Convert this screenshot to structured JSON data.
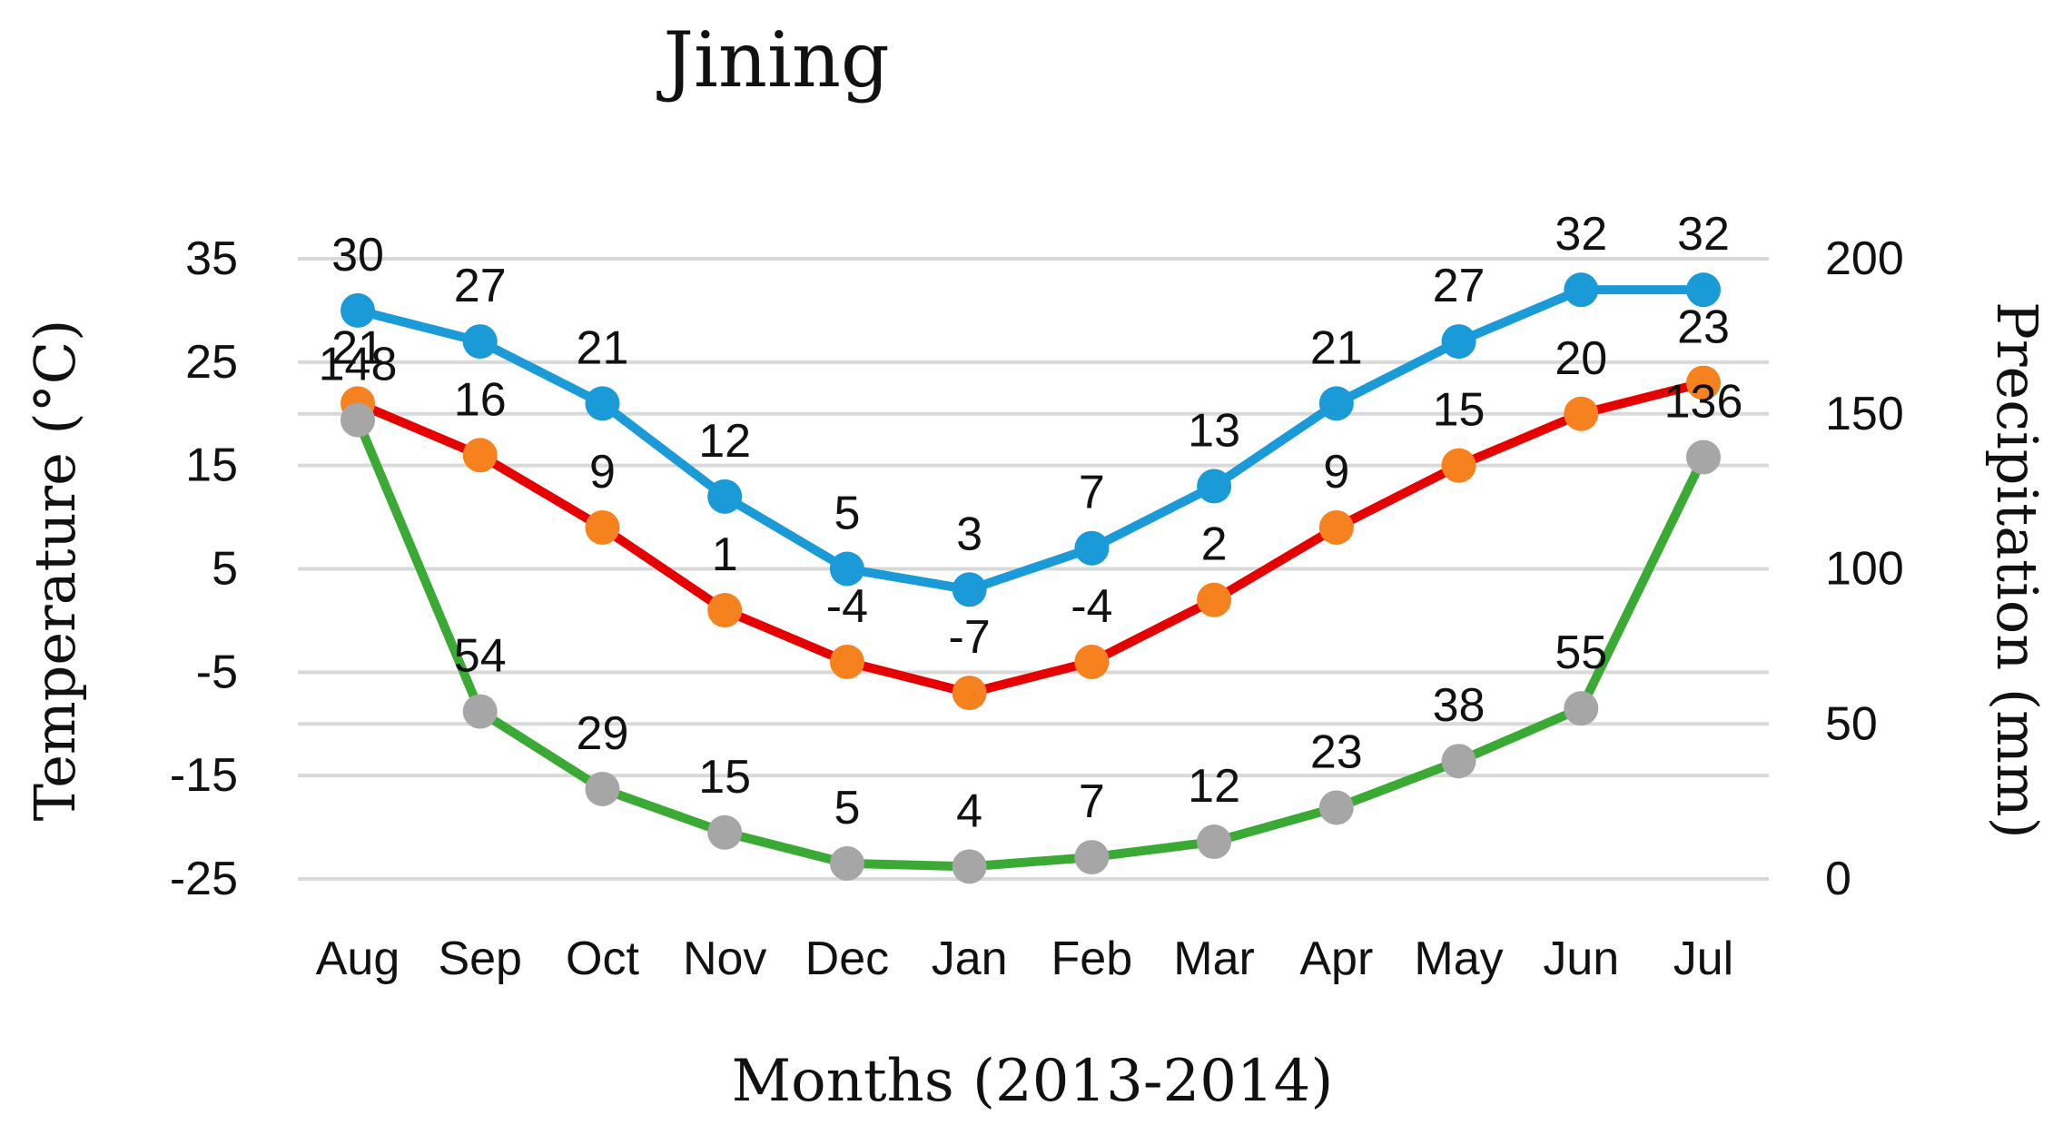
{
  "chart_data": {
    "type": "line",
    "title": "Jining",
    "xlabel": "Months (2013-2014)",
    "ylabel_left": "Temperature (°C)",
    "ylabel_right": "Precipitation (mm)",
    "categories": [
      "Aug",
      "Sep",
      "Oct",
      "Nov",
      "Dec",
      "Jan",
      "Feb",
      "Mar",
      "Apr",
      "May",
      "Jun",
      "Jul"
    ],
    "y_left": {
      "min": -25,
      "max": 35,
      "ticks": [
        "35",
        "25",
        "15",
        "5",
        "-5",
        "-15",
        "-25"
      ]
    },
    "y_right": {
      "min": 0,
      "max": 200,
      "ticks": [
        "200",
        "150",
        "100",
        "50",
        "0"
      ]
    },
    "grid": true,
    "legend": "none",
    "series": [
      {
        "axis": "left",
        "values": [
          30,
          27,
          21,
          12,
          5,
          3,
          7,
          13,
          21,
          27,
          32,
          32
        ],
        "labels": [
          "30",
          "27",
          "21",
          "12",
          "5",
          "3",
          "7",
          "13",
          "21",
          "27",
          "32",
          "32"
        ],
        "line_color": "#1a9ad6",
        "marker_color": "#1a9ad6"
      },
      {
        "axis": "left",
        "values": [
          21,
          16,
          9,
          1,
          -4,
          -7,
          -4,
          2,
          9,
          15,
          20,
          23
        ],
        "labels": [
          "21",
          "16",
          "9",
          "1",
          "-4",
          "-7",
          "-4",
          "2",
          "9",
          "15",
          "20",
          "23"
        ],
        "line_color": "#e60000",
        "marker_color": "#f5821f"
      },
      {
        "axis": "right",
        "values": [
          148,
          54,
          29,
          15,
          5,
          4,
          7,
          12,
          23,
          38,
          55,
          136
        ],
        "labels": [
          "148",
          "54",
          "29",
          "15",
          "5",
          "4",
          "7",
          "12",
          "23",
          "38",
          "55",
          "136"
        ],
        "line_color": "#3aaa35",
        "marker_color": "#a6a6a6"
      }
    ]
  },
  "colors": {
    "gridline": "#d9d9d9",
    "text": "#111111"
  }
}
